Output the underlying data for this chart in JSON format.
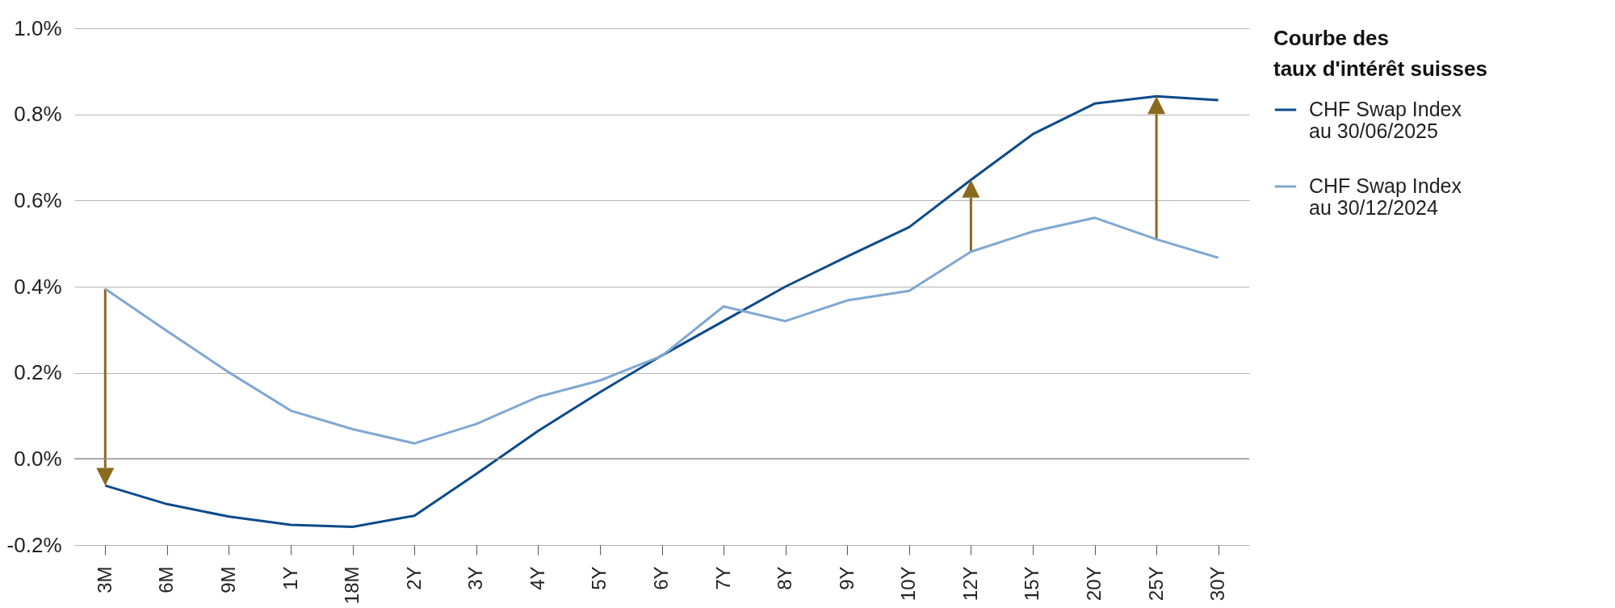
{
  "chart_data": {
    "type": "line",
    "legend_title": "Courbe des taux d'intérêt suisses",
    "legend": "top right",
    "grid": "y",
    "categories": [
      "3M",
      "6M",
      "9M",
      "1Y",
      "18M",
      "2Y",
      "3Y",
      "4Y",
      "5Y",
      "6Y",
      "7Y",
      "8Y",
      "9Y",
      "10Y",
      "12Y",
      "15Y",
      "20Y",
      "25Y",
      "30Y"
    ],
    "ylim": [
      -0.2,
      1.0
    ],
    "yticks": [
      {
        "value": -0.2,
        "label": "-0.2%"
      },
      {
        "value": 0,
        "label": "0.0%"
      },
      {
        "value": 0.2,
        "label": "0.2%"
      },
      {
        "value": 0.4,
        "label": "0.4%"
      },
      {
        "value": 0.6,
        "label": "0.6%"
      },
      {
        "value": 0.8,
        "label": "0.8%"
      },
      {
        "value": 1.0,
        "label": "1.0%"
      }
    ],
    "ref_lines": [
      {
        "axis": "y",
        "value": 0,
        "color": "#8c8c8c"
      }
    ],
    "annotations": [
      {
        "x": "3M"
      },
      {
        "x": "12Y"
      },
      {
        "x": "25Y"
      }
    ],
    "series": [
      {
        "name": "CHF Swap Index au 30/06/2025",
        "color": "#0d4a8a",
        "values": [
          -0.062,
          -0.105,
          -0.134,
          -0.153,
          -0.158,
          -0.132,
          -0.035,
          0.065,
          0.155,
          0.24,
          0.32,
          0.4,
          0.47,
          0.538,
          0.648,
          0.754,
          0.825,
          0.842,
          0.833
        ]
      },
      {
        "name": "CHF Swap Index au 30/12/2024",
        "color": "#7fa8d2",
        "values": [
          0.395,
          0.297,
          0.201,
          0.112,
          0.069,
          0.036,
          0.081,
          0.144,
          0.182,
          0.239,
          0.354,
          0.32,
          0.368,
          0.39,
          0.481,
          0.528,
          0.56,
          0.51,
          0.467
        ]
      }
    ]
  }
}
